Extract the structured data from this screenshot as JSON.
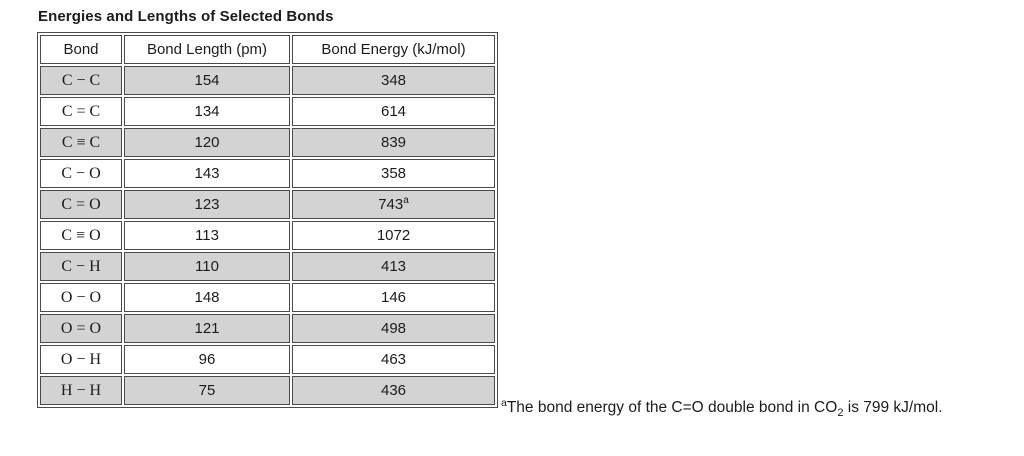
{
  "title": "Energies and Lengths of Selected Bonds",
  "table": {
    "headers": [
      "Bond",
      "Bond Length (pm)",
      "Bond Energy (kJ/mol)"
    ],
    "rows": [
      {
        "bond": "C − C",
        "length": "154",
        "energy": "348",
        "note": ""
      },
      {
        "bond": "C = C",
        "length": "134",
        "energy": "614",
        "note": ""
      },
      {
        "bond": "C ≡ C",
        "length": "120",
        "energy": "839",
        "note": ""
      },
      {
        "bond": "C − O",
        "length": "143",
        "energy": "358",
        "note": ""
      },
      {
        "bond": "C = O",
        "length": "123",
        "energy": "743",
        "note": "a"
      },
      {
        "bond": "C ≡ O",
        "length": "113",
        "energy": "1072",
        "note": ""
      },
      {
        "bond": "C − H",
        "length": "110",
        "energy": "413",
        "note": ""
      },
      {
        "bond": "O − O",
        "length": "148",
        "energy": "146",
        "note": ""
      },
      {
        "bond": "O = O",
        "length": "121",
        "energy": "498",
        "note": ""
      },
      {
        "bond": "O − H",
        "length": "96",
        "energy": "463",
        "note": ""
      },
      {
        "bond": "H − H",
        "length": "75",
        "energy": "436",
        "note": ""
      }
    ]
  },
  "footnote": {
    "marker": "a",
    "text_before_sub": "The bond energy of the C=O double bond in CO",
    "sub": "2",
    "text_after_sub": " is 799 kJ/mol."
  },
  "colors": {
    "row_stripe": "#d3d3d3",
    "border": "#4a4a4a",
    "text": "#1c1c1c",
    "background": "#ffffff"
  }
}
